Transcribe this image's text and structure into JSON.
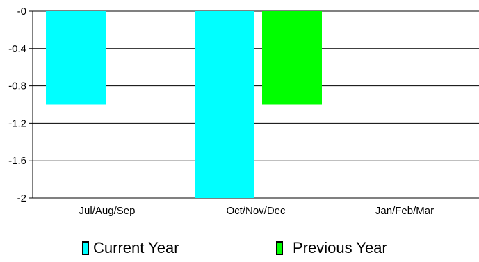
{
  "chart_data": {
    "type": "bar",
    "categories": [
      "Jul/Aug/Sep",
      "Oct/Nov/Dec",
      "Jan/Feb/Mar"
    ],
    "series": [
      {
        "name": "Current Year",
        "color": "#00ffff",
        "values": [
          -1,
          -2,
          0
        ]
      },
      {
        "name": "Previous Year",
        "color": "#00ff00",
        "values": [
          0,
          -1,
          0
        ]
      }
    ],
    "ylim": [
      -2,
      0
    ],
    "yticks": [
      "-0",
      "-0.4",
      "-0.8",
      "-1.2",
      "-1.6",
      "-2"
    ],
    "ytick_values": [
      0,
      -0.4,
      -0.8,
      -1.2,
      -1.6,
      -2
    ],
    "grid": true,
    "legend_placement": "bottom"
  }
}
